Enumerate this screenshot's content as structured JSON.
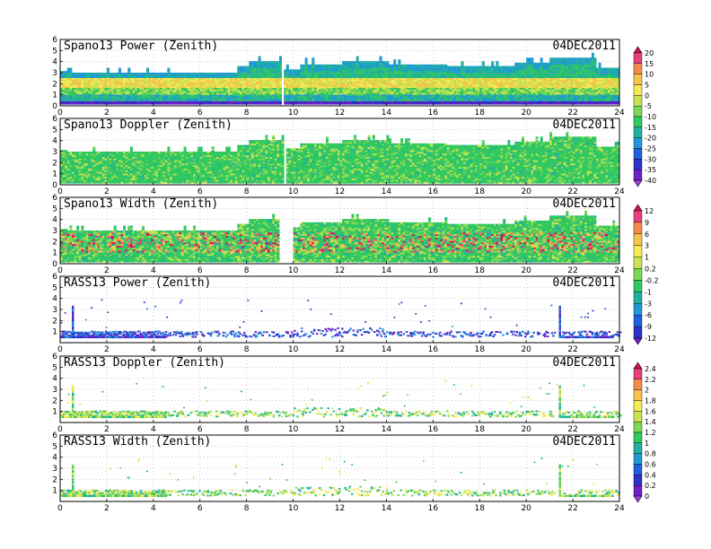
{
  "chart_data": [
    {
      "type": "heatmap",
      "title": "Spano13 Power (Zenith)",
      "date": "04DEC2011",
      "xlim": [
        0,
        24
      ],
      "ylim": [
        0,
        6
      ],
      "x_ticks": [
        "0",
        "2",
        "4",
        "6",
        "8",
        "10",
        "12",
        "14",
        "16",
        "18",
        "20",
        "22",
        "24"
      ],
      "y_ticks": [
        "0",
        "1",
        "2",
        "3",
        "4",
        "5",
        "6"
      ],
      "grid": true,
      "colorbar": "power",
      "profile": "power_spano"
    },
    {
      "type": "heatmap",
      "title": "Spano13 Doppler (Zenith)",
      "date": "04DEC2011",
      "xlim": [
        0,
        24
      ],
      "ylim": [
        0,
        6
      ],
      "x_ticks": [
        "0",
        "2",
        "4",
        "6",
        "8",
        "10",
        "12",
        "14",
        "16",
        "18",
        "20",
        "22",
        "24"
      ],
      "y_ticks": [
        "0",
        "1",
        "2",
        "3",
        "4",
        "5",
        "6"
      ],
      "grid": true,
      "colorbar": "power",
      "profile": "doppler_spano"
    },
    {
      "type": "heatmap",
      "title": "Spano13 Width (Zenith)",
      "date": "04DEC2011",
      "xlim": [
        0,
        24
      ],
      "ylim": [
        0,
        6
      ],
      "x_ticks": [
        "0",
        "2",
        "4",
        "6",
        "8",
        "10",
        "12",
        "14",
        "16",
        "18",
        "20",
        "22",
        "24"
      ],
      "y_ticks": [
        "0",
        "1",
        "2",
        "3",
        "4",
        "5",
        "6"
      ],
      "grid": true,
      "colorbar": "width",
      "profile": "width_spano"
    },
    {
      "type": "heatmap",
      "title": "RASS13 Power (Zenith)",
      "date": "04DEC2011",
      "xlim": [
        0,
        24
      ],
      "ylim": [
        0,
        6
      ],
      "x_ticks": [
        "0",
        "2",
        "4",
        "6",
        "8",
        "10",
        "12",
        "14",
        "16",
        "18",
        "20",
        "22",
        "24"
      ],
      "y_ticks": [
        "1",
        "2",
        "3",
        "4",
        "5",
        "6"
      ],
      "grid": true,
      "colorbar": "width",
      "profile": "power_rass"
    },
    {
      "type": "heatmap",
      "title": "RASS13 Doppler (Zenith)",
      "date": "04DEC2011",
      "xlim": [
        0,
        24
      ],
      "ylim": [
        0,
        6
      ],
      "x_ticks": [
        "0",
        "2",
        "4",
        "6",
        "8",
        "10",
        "12",
        "14",
        "16",
        "18",
        "20",
        "22",
        "24"
      ],
      "y_ticks": [
        "1",
        "2",
        "3",
        "4",
        "5",
        "6"
      ],
      "grid": true,
      "colorbar": "rass",
      "profile": "rass"
    },
    {
      "type": "heatmap",
      "title": "RASS13 Width (Zenith)",
      "date": "04DEC2011",
      "xlim": [
        0,
        24
      ],
      "ylim": [
        0,
        6
      ],
      "x_ticks": [
        "0",
        "2",
        "4",
        "6",
        "8",
        "10",
        "12",
        "14",
        "16",
        "18",
        "20",
        "22",
        "24"
      ],
      "y_ticks": [
        "1",
        "2",
        "3",
        "4",
        "5",
        "6"
      ],
      "grid": true,
      "colorbar": "rass",
      "profile": "rass"
    }
  ],
  "colorbars": {
    "power": {
      "labels": [
        "20",
        "15",
        "10",
        "5",
        "0",
        "-5",
        "-10",
        "-15",
        "-20",
        "-25",
        "-30",
        "-35",
        "-40"
      ],
      "colors": [
        "#d01060",
        "#e8407a",
        "#f58a4a",
        "#f6c44a",
        "#f5ea55",
        "#c8e450",
        "#7cd855",
        "#30c860",
        "#20b0a0",
        "#2098d8",
        "#2060e0",
        "#3030c8",
        "#7020c8",
        "#a040d8"
      ]
    },
    "width": {
      "labels": [
        "12",
        "9",
        "6",
        "3",
        "1",
        "0.2",
        "-0.2",
        "-1",
        "-3",
        "-6",
        "-9",
        "-12"
      ],
      "colors": [
        "#d01060",
        "#e8407a",
        "#f58a4a",
        "#f6c44a",
        "#f5ea55",
        "#c8e450",
        "#7cd855",
        "#30c860",
        "#20b0a0",
        "#2098d8",
        "#2060e0",
        "#3030c8",
        "#7020c8"
      ]
    },
    "rass": {
      "labels": [
        "2.4",
        "2.2",
        "2",
        "1.8",
        "1.6",
        "1.4",
        "1.2",
        "1",
        "0.8",
        "0.6",
        "0.4",
        "0.2",
        "0"
      ],
      "colors": [
        "#d01060",
        "#e8407a",
        "#f58a4a",
        "#f6c44a",
        "#f5ea55",
        "#c8e450",
        "#7cd855",
        "#30c860",
        "#20b0a0",
        "#2098d8",
        "#2060e0",
        "#3030c8",
        "#7020c8",
        "#a040d8"
      ]
    }
  }
}
